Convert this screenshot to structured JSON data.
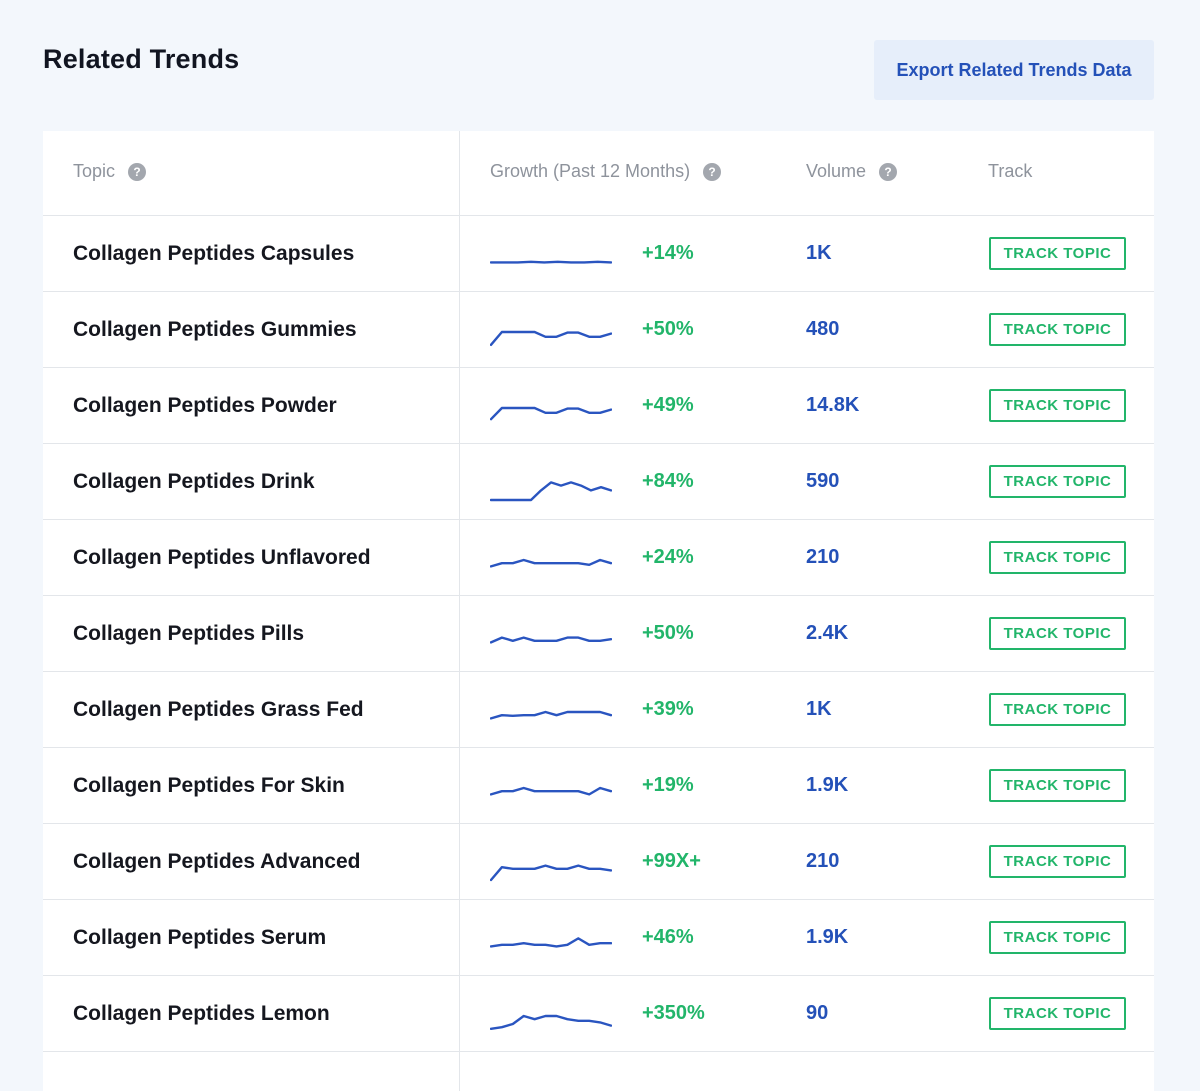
{
  "header": {
    "title": "Related Trends",
    "export_label": "Export Related Trends Data"
  },
  "table": {
    "columns": {
      "topic": "Topic",
      "growth": "Growth (Past 12 Months)",
      "volume": "Volume",
      "track": "Track"
    },
    "track_label": "TRACK TOPIC",
    "rows": [
      {
        "topic": "Collagen Peptides Capsules",
        "growth": "+14%",
        "volume": "1K",
        "trend": [
          0.3,
          0.3,
          0.3,
          0.32,
          0.3,
          0.32,
          0.3,
          0.3,
          0.32,
          0.3
        ]
      },
      {
        "topic": "Collagen Peptides Gummies",
        "growth": "+50%",
        "volume": "480",
        "trend": [
          0.1,
          0.5,
          0.5,
          0.5,
          0.5,
          0.35,
          0.35,
          0.48,
          0.48,
          0.35,
          0.35,
          0.45
        ]
      },
      {
        "topic": "Collagen Peptides Powder",
        "growth": "+49%",
        "volume": "14.8K",
        "trend": [
          0.15,
          0.5,
          0.5,
          0.5,
          0.5,
          0.35,
          0.35,
          0.48,
          0.48,
          0.35,
          0.35,
          0.45
        ]
      },
      {
        "topic": "Collagen Peptides Drink",
        "growth": "+84%",
        "volume": "590",
        "trend": [
          0,
          0,
          0,
          0,
          0.0,
          0.3,
          0.55,
          0.45,
          0.55,
          0.45,
          0.3,
          0.4,
          0.3
        ]
      },
      {
        "topic": "Collagen Peptides Unflavored",
        "growth": "+24%",
        "volume": "210",
        "trend": [
          0.3,
          0.4,
          0.4,
          0.5,
          0.4,
          0.4,
          0.4,
          0.4,
          0.4,
          0.35,
          0.5,
          0.4
        ]
      },
      {
        "topic": "Collagen Peptides Pills",
        "growth": "+50%",
        "volume": "2.4K",
        "trend": [
          0.3,
          0.45,
          0.35,
          0.45,
          0.35,
          0.35,
          0.35,
          0.45,
          0.45,
          0.35,
          0.35,
          0.4
        ]
      },
      {
        "topic": "Collagen Peptides Grass Fed",
        "growth": "+39%",
        "volume": "1K",
        "trend": [
          0.3,
          0.4,
          0.38,
          0.4,
          0.4,
          0.5,
          0.4,
          0.5,
          0.5,
          0.5,
          0.5,
          0.4
        ]
      },
      {
        "topic": "Collagen Peptides For Skin",
        "growth": "+19%",
        "volume": "1.9K",
        "trend": [
          0.3,
          0.4,
          0.4,
          0.5,
          0.4,
          0.4,
          0.4,
          0.4,
          0.4,
          0.3,
          0.5,
          0.4
        ]
      },
      {
        "topic": "Collagen Peptides Advanced",
        "growth": "+99X+",
        "volume": "210",
        "trend": [
          0,
          0.4,
          0.35,
          0.35,
          0.35,
          0.45,
          0.35,
          0.35,
          0.45,
          0.35,
          0.35,
          0.3
        ]
      },
      {
        "topic": "Collagen Peptides Serum",
        "growth": "+46%",
        "volume": "1.9K",
        "trend": [
          0.3,
          0.35,
          0.35,
          0.4,
          0.35,
          0.35,
          0.3,
          0.35,
          0.55,
          0.35,
          0.4,
          0.4
        ]
      },
      {
        "topic": "Collagen Peptides Lemon",
        "growth": "+350%",
        "volume": "90",
        "trend": [
          0.1,
          0.15,
          0.25,
          0.5,
          0.4,
          0.5,
          0.5,
          0.4,
          0.35,
          0.35,
          0.3,
          0.2
        ]
      }
    ]
  },
  "colors": {
    "accent_blue": "#2451b8",
    "growth_green": "#22b56a",
    "sparkline": "#2a55c0"
  },
  "icons": {
    "help": "question-circle-icon"
  },
  "help_glyph": "?"
}
